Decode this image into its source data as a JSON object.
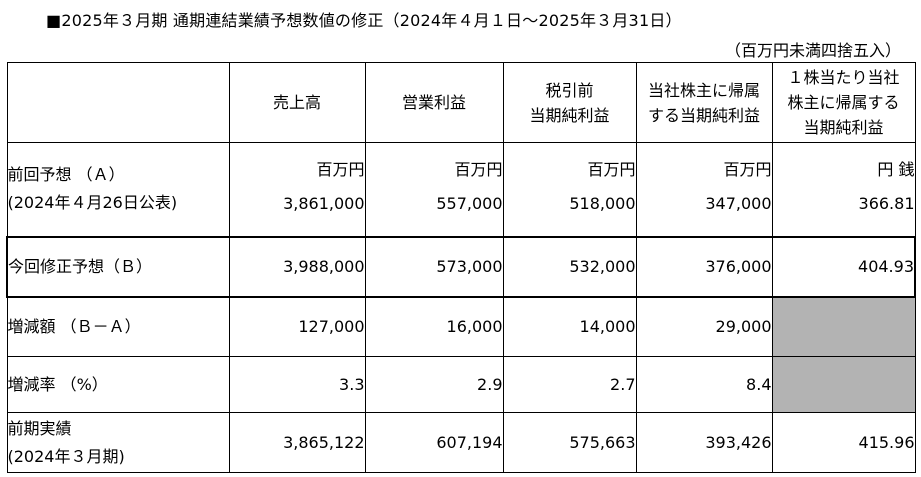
{
  "title": "■2025年３月期 通期連結業績予想数値の修正（2024年４月１日～2025年３月31日）",
  "unit_note": "（百万円未満四捨五入）",
  "headers": [
    "",
    "売上高",
    "営業利益",
    "税引前\n当期純利益",
    "当社株主に帰属\nする当期純利益",
    "１株当たり当社\n株主に帰属する\n当期純利益"
  ],
  "units": [
    "百万円",
    "百万円",
    "百万円",
    "百万円",
    "円 銭"
  ],
  "rows": [
    {
      "label": "前回予想 （Ａ）",
      "sublabel": "(2024年４月26日公表)",
      "values": [
        "3,861,000",
        "557,000",
        "518,000",
        "347,000",
        "366.81"
      ]
    },
    {
      "label": "今回修正予想（Ｂ）",
      "values": [
        "3,988,000",
        "573,000",
        "532,000",
        "376,000",
        "404.93"
      ]
    },
    {
      "label": "増減額 （Ｂ－Ａ）",
      "values": [
        "127,000",
        "16,000",
        "14,000",
        "29,000",
        ""
      ]
    },
    {
      "label": "増減率 （%）",
      "values": [
        "3.3",
        "2.9",
        "2.7",
        "8.4",
        ""
      ]
    },
    {
      "label": "前期実績",
      "sublabel": "(2024年３月期)",
      "values": [
        "3,865,122",
        "607,194",
        "575,663",
        "393,426",
        "415.96"
      ]
    }
  ]
}
